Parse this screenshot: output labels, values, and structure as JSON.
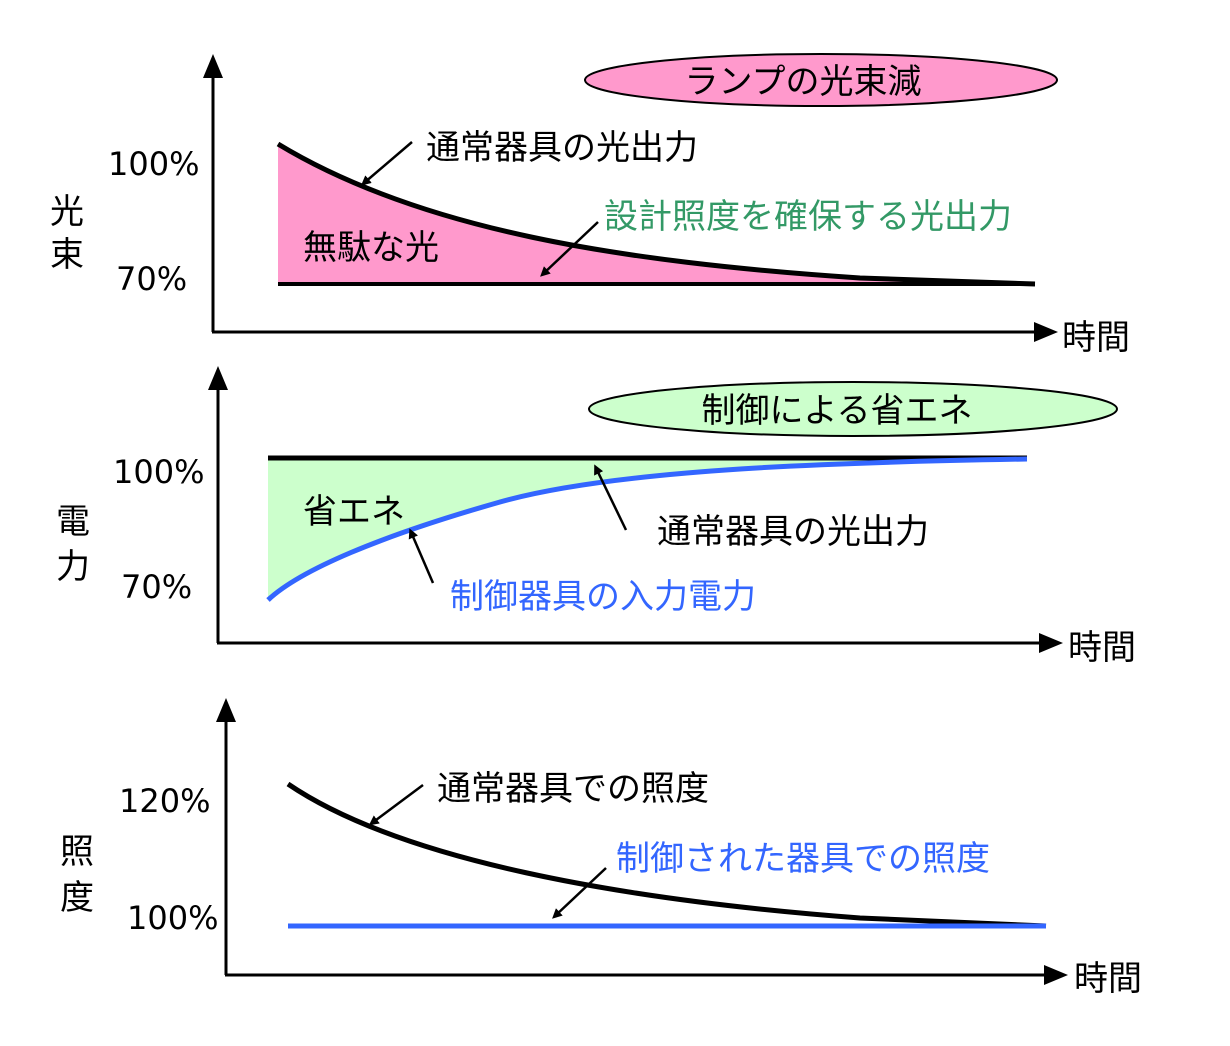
{
  "colors": {
    "black": "#000000",
    "pink_fill": "#ff99cc",
    "green_fill": "#ccffcc",
    "green_text": "#339966",
    "blue": "#3366ff"
  },
  "panel1": {
    "badge": "ランプの光束減",
    "y_axis_label": [
      "光",
      "束"
    ],
    "tick_top": "100%",
    "tick_bottom": "70%",
    "x_axis_label": "時間",
    "callout_normal": "通常器具の光出力",
    "callout_design": "設計照度を確保する光出力",
    "area_label": "無駄な光"
  },
  "panel2": {
    "badge": "制御による省エネ",
    "y_axis_label": [
      "電",
      "力"
    ],
    "tick_top": "100%",
    "tick_bottom": "70%",
    "x_axis_label": "時間",
    "callout_normal": "通常器具の光出力",
    "callout_controlled": "制御器具の入力電力",
    "area_label": "省エネ"
  },
  "panel3": {
    "y_axis_label": [
      "照",
      "度"
    ],
    "tick_top": "120%",
    "tick_bottom": "100%",
    "x_axis_label": "時間",
    "callout_normal": "通常器具での照度",
    "callout_controlled": "制御された器具での照度"
  }
}
